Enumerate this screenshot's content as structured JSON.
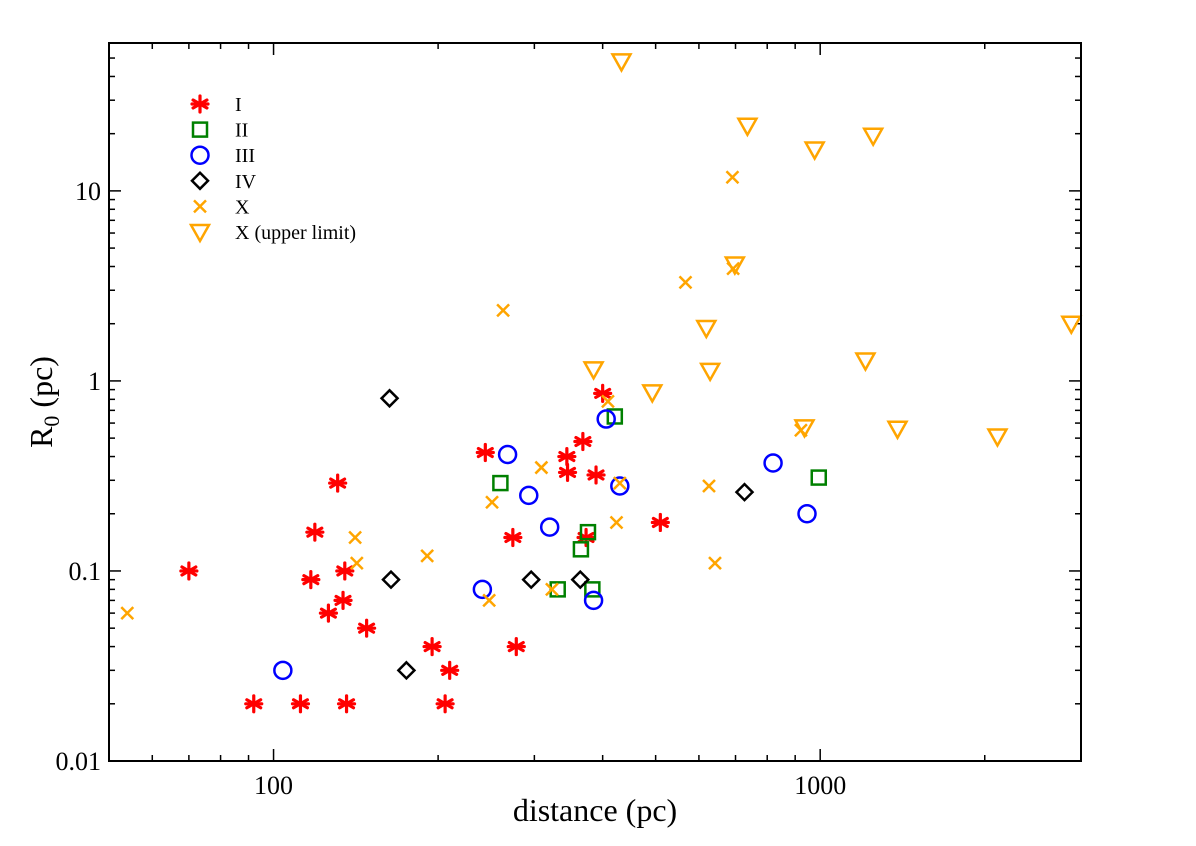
{
  "chart_data": {
    "type": "scatter",
    "title": "",
    "xlabel": "distance (pc)",
    "ylabel_main": "R",
    "ylabel_sub": "0",
    "ylabel_unit": " (pc)",
    "xscale": "log",
    "yscale": "log",
    "xlim": [
      50,
      3000
    ],
    "ylim": [
      0.01,
      60
    ],
    "x_major_ticks": [
      100,
      1000
    ],
    "x_tick_labels": [
      "100",
      "1000"
    ],
    "y_major_ticks": [
      0.01,
      0.1,
      1,
      10
    ],
    "y_tick_labels": [
      "0.01",
      "0.1",
      "1",
      "10"
    ],
    "legend_position": "top-left",
    "series": [
      {
        "name": "I",
        "marker": "asterisk",
        "color": "#ff0000",
        "points": [
          [
            70,
            0.1
          ],
          [
            92,
            0.02
          ],
          [
            112,
            0.02
          ],
          [
            117,
            0.09
          ],
          [
            119,
            0.16
          ],
          [
            126,
            0.06
          ],
          [
            131,
            0.29
          ],
          [
            134,
            0.07
          ],
          [
            135,
            0.1
          ],
          [
            136,
            0.02
          ],
          [
            148,
            0.05
          ],
          [
            195,
            0.04
          ],
          [
            206,
            0.02
          ],
          [
            210,
            0.03
          ],
          [
            244,
            0.42
          ],
          [
            274,
            0.15
          ],
          [
            278,
            0.04
          ],
          [
            344,
            0.4
          ],
          [
            345,
            0.33
          ],
          [
            368,
            0.48
          ],
          [
            373,
            0.15
          ],
          [
            389,
            0.32
          ],
          [
            400,
            0.86
          ],
          [
            510,
            0.18
          ]
        ]
      },
      {
        "name": "II",
        "marker": "square",
        "color": "#008000",
        "points": [
          [
            260,
            0.29
          ],
          [
            331,
            0.08
          ],
          [
            365,
            0.13
          ],
          [
            376,
            0.16
          ],
          [
            383,
            0.08
          ],
          [
            421,
            0.65
          ],
          [
            994,
            0.31
          ]
        ]
      },
      {
        "name": "III",
        "marker": "circle",
        "color": "#0000ff",
        "points": [
          [
            104,
            0.03
          ],
          [
            241,
            0.08
          ],
          [
            268,
            0.41
          ],
          [
            293,
            0.25
          ],
          [
            320,
            0.17
          ],
          [
            385,
            0.07
          ],
          [
            406,
            0.63
          ],
          [
            430,
            0.28
          ],
          [
            820,
            0.37
          ],
          [
            946,
            0.2
          ]
        ]
      },
      {
        "name": "IV",
        "marker": "diamond",
        "color": "#000000",
        "points": [
          [
            163,
            0.81
          ],
          [
            164,
            0.09
          ],
          [
            175,
            0.03
          ],
          [
            296,
            0.09
          ],
          [
            364,
            0.09
          ],
          [
            727,
            0.26
          ]
        ]
      },
      {
        "name": "X",
        "marker": "x",
        "color": "#ffa500",
        "points": [
          [
            54,
            0.06
          ],
          [
            141,
            0.15
          ],
          [
            142,
            0.11
          ],
          [
            191,
            0.12
          ],
          [
            248,
            0.07
          ],
          [
            251,
            0.23
          ],
          [
            263,
            2.35
          ],
          [
            309,
            0.35
          ],
          [
            323,
            0.08
          ],
          [
            409,
            0.78
          ],
          [
            424,
            0.18
          ],
          [
            430,
            0.29
          ],
          [
            567,
            3.3
          ],
          [
            626,
            0.28
          ],
          [
            642,
            0.11
          ],
          [
            691,
            11.8
          ],
          [
            693,
            3.9
          ],
          [
            922,
            0.55
          ]
        ]
      },
      {
        "name": "X (upper limit)",
        "marker": "triangle-down",
        "color": "#ffa500",
        "points": [
          [
            385,
            1.15
          ],
          [
            433,
            48
          ],
          [
            493,
            0.87
          ],
          [
            619,
            1.9
          ],
          [
            629,
            1.13
          ],
          [
            698,
            4.1
          ],
          [
            736,
            22
          ],
          [
            977,
            16.5
          ],
          [
            936,
            0.57
          ],
          [
            1210,
            1.28
          ],
          [
            1250,
            19.5
          ],
          [
            1385,
            0.56
          ],
          [
            2110,
            0.51
          ],
          [
            2880,
            2.0
          ]
        ]
      }
    ]
  }
}
